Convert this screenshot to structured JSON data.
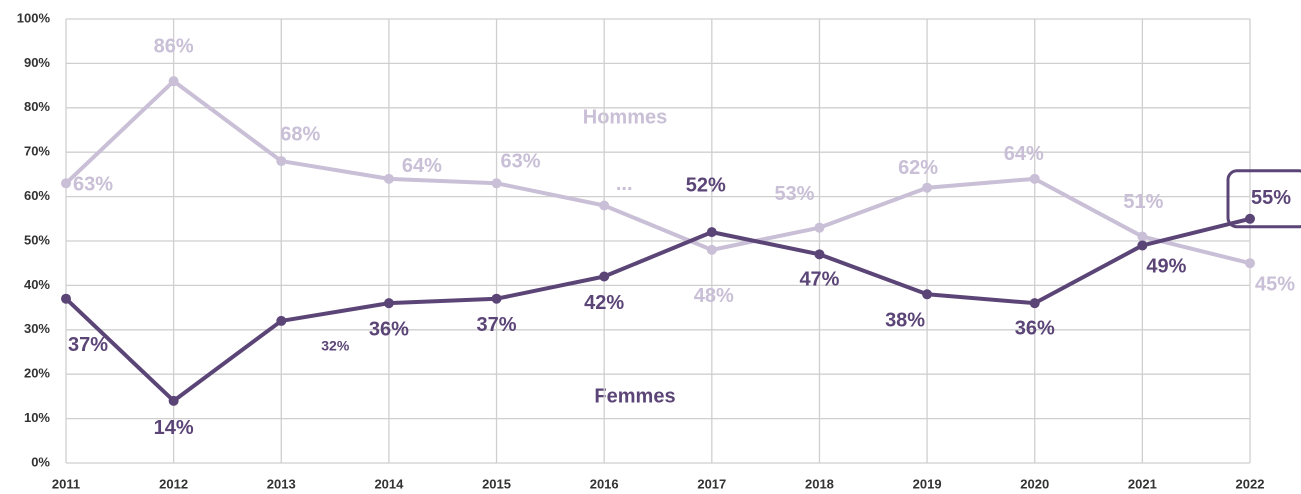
{
  "chart_data": {
    "type": "line",
    "x": [
      "2011",
      "2012",
      "2013",
      "2014",
      "2015",
      "2016",
      "2017",
      "2018",
      "2019",
      "2020",
      "2021",
      "2022"
    ],
    "series": [
      {
        "name": "Hommes",
        "color": "#c9bfd6",
        "values": [
          63,
          86,
          68,
          64,
          63,
          58,
          48,
          53,
          62,
          64,
          51,
          45
        ],
        "value_labels": [
          "63%",
          "86%",
          "68%",
          "64%",
          "63%",
          "...",
          "48%",
          "53%",
          "62%",
          "64%",
          "51%",
          "45%"
        ]
      },
      {
        "name": "Femmes",
        "color": "#5b4577",
        "values": [
          37,
          14,
          32,
          36,
          37,
          42,
          52,
          47,
          38,
          36,
          49,
          55
        ],
        "value_labels": [
          "37%",
          "14%",
          "32%",
          "36%",
          "37%",
          "42%",
          "52%",
          "47%",
          "38%",
          "36%",
          "49%",
          "55%"
        ]
      }
    ],
    "ylim": [
      0,
      100
    ],
    "yticks": [
      {
        "value": 0,
        "label": "0%"
      },
      {
        "value": 10,
        "label": "10%"
      },
      {
        "value": 20,
        "label": "20%"
      },
      {
        "value": 30,
        "label": "30%"
      },
      {
        "value": 40,
        "label": "40%"
      },
      {
        "value": 50,
        "label": "50%"
      },
      {
        "value": 60,
        "label": "60%"
      },
      {
        "value": 70,
        "label": "70%"
      },
      {
        "value": 80,
        "label": "80%"
      },
      {
        "value": 90,
        "label": "90%"
      },
      {
        "value": 100,
        "label": "100%"
      }
    ],
    "grid": true
  }
}
